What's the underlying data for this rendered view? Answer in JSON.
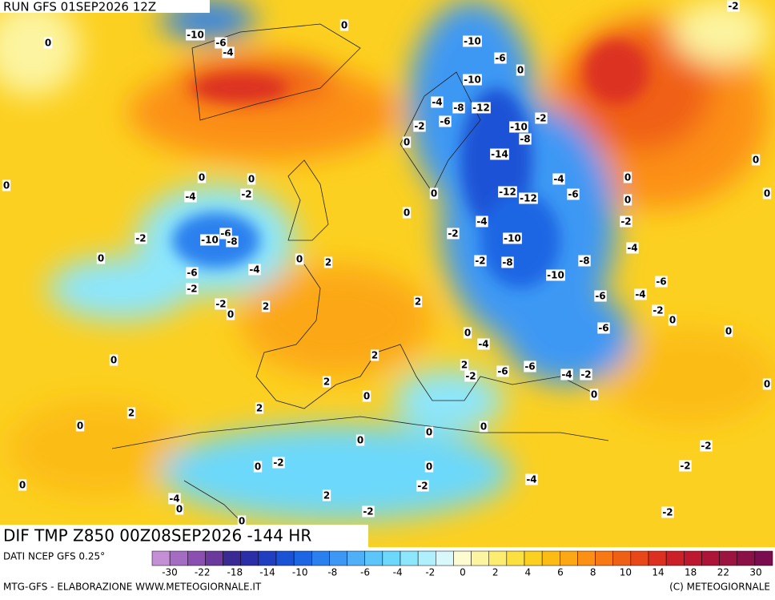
{
  "header": {
    "title": "RUN GFS 01SEP2026 12Z"
  },
  "map": {
    "title": "DIF TMP Z850 00Z08SEP2026 -144 HR",
    "contour_labels": [
      -10,
      -6,
      -4,
      0,
      0,
      -10,
      -6,
      -10,
      0,
      -4,
      -8,
      -12,
      -6,
      -2,
      -2,
      -10,
      -8,
      0,
      -14,
      -4,
      -6,
      -12,
      -12,
      -4,
      0,
      -2,
      -2,
      -10,
      -4,
      -2,
      -8,
      -8,
      -10,
      -6,
      -6,
      -4,
      -2,
      0,
      -6,
      0,
      0,
      -4,
      2,
      -2,
      -6,
      -6,
      -4,
      -2,
      0,
      0,
      0,
      0,
      -4,
      -2,
      0,
      -2,
      -6,
      -10,
      -8,
      0,
      2,
      0,
      -4,
      -6,
      -2,
      -2,
      0,
      2,
      2,
      0,
      0,
      0,
      2,
      2,
      0,
      2,
      2,
      0,
      0,
      0,
      0,
      -2,
      -2,
      0,
      -2,
      0,
      -2,
      -4,
      0,
      2,
      -4,
      0,
      -2,
      -2,
      0,
      -2,
      0,
      0,
      0
    ]
  },
  "footer": {
    "source": "DATI NCEP GFS 0.25°",
    "credit": "MTG-GFS - ELABORAZIONE WWW.METEOGIORNALE.IT",
    "copyright": "(C) METEOGIORNALE",
    "colorbar": {
      "ticks": [
        -30,
        -22,
        -18,
        -14,
        -10,
        -8,
        -6,
        -4,
        -2,
        0,
        2,
        4,
        6,
        8,
        10,
        14,
        18,
        22,
        30
      ],
      "colors": [
        "#c58fd6",
        "#a56cc4",
        "#8a4fb0",
        "#6b3a9c",
        "#3c2a94",
        "#2a2fa8",
        "#1f3ec0",
        "#1a52d6",
        "#1c66e4",
        "#2a80ee",
        "#3c98f4",
        "#4fb0f8",
        "#5cc6fa",
        "#6cd8fb",
        "#8ce6fc",
        "#b0f0fc",
        "#d8f8fc",
        "#fcfcd0",
        "#fcf4a0",
        "#fcec70",
        "#fce040",
        "#fcd020",
        "#fcbc14",
        "#fca814",
        "#fc9014",
        "#f87814",
        "#f06014",
        "#e84818",
        "#dc3020",
        "#cc2028",
        "#bc1830",
        "#ac1438",
        "#9c1440",
        "#8c1048",
        "#7c0c50"
      ]
    }
  }
}
